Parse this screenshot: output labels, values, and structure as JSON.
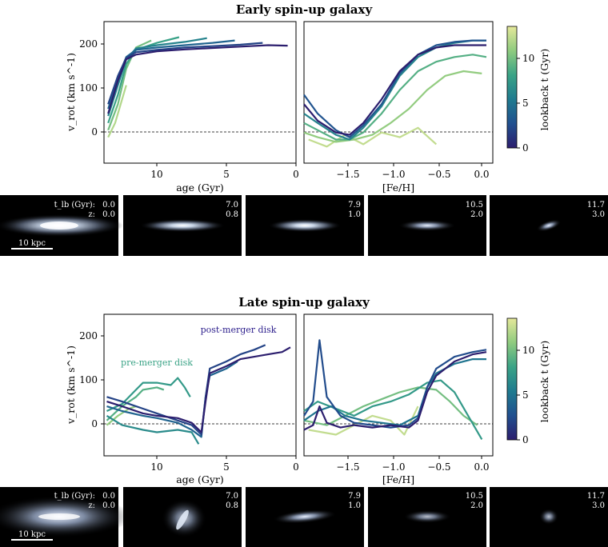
{
  "colormap": [
    "#2c1e6e",
    "#21508f",
    "#1f7b8f",
    "#3aa386",
    "#8fcb7f",
    "#e5e89a"
  ],
  "colorbar": {
    "label": "lookback t (Gyr)",
    "ticks": [
      0,
      5,
      10
    ],
    "range": [
      0,
      13.6
    ]
  },
  "snapshots": [
    {
      "tlb": "0.0",
      "z": "0.0"
    },
    {
      "tlb": "7.0",
      "z": "0.8"
    },
    {
      "tlb": "7.9",
      "z": "1.0"
    },
    {
      "tlb": "10.5",
      "z": "2.0"
    },
    {
      "tlb": "11.7",
      "z": "3.0"
    }
  ],
  "snapshot_labels": {
    "tlb": "t_lb (Gyr):",
    "z": "z:",
    "scale_bar": "10 kpc"
  },
  "chart_data": [
    {
      "type": "line",
      "panel": "early-age",
      "title": "Early spin-up galaxy",
      "xlabel": "age (Gyr)",
      "ylabel": "v_rot (km s^-1)",
      "xlim": [
        13.8,
        0
      ],
      "ylim": [
        -45,
        255
      ],
      "xticks": [
        10,
        5,
        0
      ],
      "yticks": [
        0,
        100,
        200
      ],
      "color_by": "lookback t (Gyr)",
      "series": [
        {
          "t_lookback": 0.0,
          "x": [
            13.5,
            12.8,
            12.2,
            11.5,
            10,
            8,
            6,
            4,
            2,
            0.6
          ],
          "y": [
            60,
            130,
            175,
            185,
            192,
            196,
            199,
            202,
            205,
            204
          ]
        },
        {
          "t_lookback": 2.0,
          "x": [
            13.5,
            12.8,
            12.2,
            11.5,
            10,
            8,
            6,
            4,
            2.4
          ],
          "y": [
            80,
            140,
            178,
            190,
            195,
            200,
            203,
            206,
            210
          ]
        },
        {
          "t_lookback": 4.0,
          "x": [
            13.5,
            12.8,
            12.2,
            11.5,
            10,
            8,
            6,
            4.4
          ],
          "y": [
            70,
            135,
            180,
            195,
            200,
            205,
            210,
            215
          ]
        },
        {
          "t_lookback": 6.0,
          "x": [
            13.5,
            12.8,
            12.2,
            11.5,
            10,
            8,
            6.4
          ],
          "y": [
            55,
            120,
            175,
            198,
            205,
            212,
            220
          ]
        },
        {
          "t_lookback": 8.0,
          "x": [
            13.5,
            12.8,
            12.2,
            11.5,
            10,
            8.4
          ],
          "y": [
            40,
            100,
            165,
            195,
            210,
            222
          ]
        },
        {
          "t_lookback": 10.0,
          "x": [
            13.5,
            12.8,
            12.2,
            11.5,
            10.4
          ],
          "y": [
            25,
            80,
            155,
            200,
            215
          ]
        },
        {
          "t_lookback": 12.0,
          "x": [
            13.5,
            13.0,
            12.5,
            12.2
          ],
          "y": [
            10,
            40,
            90,
            120
          ]
        }
      ],
      "annotations": []
    },
    {
      "type": "line",
      "panel": "early-feh",
      "xlabel": "[Fe/H]",
      "xlim": [
        -1.95,
        0.12
      ],
      "ylim": [
        -45,
        255
      ],
      "xticks": [
        -1.5,
        -1.0,
        -0.5,
        0.0
      ],
      "color_by": "lookback t (Gyr)",
      "series": [
        {
          "t_lookback": 0.0,
          "x": [
            -1.95,
            -1.8,
            -1.6,
            -1.45,
            -1.3,
            -1.1,
            -0.9,
            -0.7,
            -0.5,
            -0.3,
            -0.1,
            0.05
          ],
          "y": [
            80,
            45,
            20,
            15,
            40,
            90,
            150,
            185,
            200,
            205,
            205,
            205
          ]
        },
        {
          "t_lookback": 3.0,
          "x": [
            -1.95,
            -1.8,
            -1.6,
            -1.45,
            -1.3,
            -1.1,
            -0.9,
            -0.7,
            -0.5,
            -0.3,
            -0.1,
            0.05
          ],
          "y": [
            100,
            60,
            25,
            10,
            35,
            80,
            145,
            185,
            205,
            212,
            215,
            215
          ]
        },
        {
          "t_lookback": 6.0,
          "x": [
            -1.95,
            -1.8,
            -1.6,
            -1.45,
            -1.3,
            -1.1,
            -0.9,
            -0.7,
            -0.5,
            -0.3,
            -0.1,
            0.05
          ],
          "y": [
            60,
            40,
            15,
            5,
            30,
            75,
            140,
            180,
            200,
            210,
            215,
            215
          ]
        },
        {
          "t_lookback": 9.0,
          "x": [
            -1.95,
            -1.8,
            -1.6,
            -1.45,
            -1.3,
            -1.1,
            -0.9,
            -0.7,
            -0.5,
            -0.3,
            -0.1,
            0.05
          ],
          "y": [
            40,
            25,
            5,
            5,
            20,
            60,
            110,
            150,
            170,
            180,
            185,
            180
          ]
        },
        {
          "t_lookback": 11.0,
          "x": [
            -1.95,
            -1.8,
            -1.6,
            -1.4,
            -1.2,
            -1.0,
            -0.8,
            -0.6,
            -0.4,
            -0.2,
            0.0
          ],
          "y": [
            20,
            10,
            0,
            5,
            15,
            40,
            70,
            110,
            140,
            150,
            145
          ]
        },
        {
          "t_lookback": 12.5,
          "x": [
            -1.9,
            -1.7,
            -1.5,
            -1.3,
            -1.1,
            -0.9,
            -0.7,
            -0.5
          ],
          "y": [
            5,
            -10,
            15,
            -5,
            20,
            10,
            30,
            -5
          ]
        }
      ],
      "annotations": []
    },
    {
      "type": "line",
      "panel": "late-age",
      "title": "Late spin-up galaxy",
      "xlabel": "age (Gyr)",
      "ylabel": "v_rot (km s^-1)",
      "xlim": [
        13.8,
        0
      ],
      "ylim": [
        -45,
        255
      ],
      "xticks": [
        10,
        5,
        0
      ],
      "yticks": [
        0,
        100,
        200
      ],
      "color_by": "lookback t (Gyr)",
      "series": [
        {
          "t_lookback": 0.0,
          "x": [
            13.6,
            12.5,
            11,
            10,
            8.5,
            7.5,
            6.8,
            6.5,
            6.2,
            5,
            4,
            3,
            2,
            1,
            0.4
          ],
          "y": [
            70,
            60,
            45,
            40,
            35,
            25,
            5,
            70,
            130,
            145,
            160,
            165,
            170,
            175,
            185
          ]
        },
        {
          "t_lookback": 2.0,
          "x": [
            13.6,
            12.5,
            11,
            10,
            8.5,
            7.5,
            6.8,
            6.5,
            6.2,
            5,
            4,
            3,
            2.2
          ],
          "y": [
            80,
            70,
            55,
            45,
            30,
            20,
            0,
            80,
            140,
            155,
            170,
            180,
            190
          ]
        },
        {
          "t_lookback": 4.0,
          "x": [
            13.6,
            12.5,
            11,
            10,
            8.5,
            7.5,
            6.8,
            6.5,
            6.2,
            5,
            4.2
          ],
          "y": [
            60,
            50,
            40,
            35,
            25,
            10,
            -5,
            80,
            125,
            140,
            155
          ]
        },
        {
          "t_lookback": 6.5,
          "x": [
            13.6,
            12.5,
            11,
            10,
            8.5,
            7.5,
            7.0
          ],
          "y": [
            40,
            20,
            10,
            5,
            10,
            5,
            -20
          ]
        },
        {
          "t_lookback": 7.5,
          "x": [
            13.6,
            12.5,
            11.5,
            11,
            10,
            9,
            8.5,
            8.0,
            7.6
          ],
          "y": [
            50,
            65,
            95,
            110,
            110,
            105,
            120,
            100,
            80
          ]
        },
        {
          "t_lookback": 9.0,
          "x": [
            13.6,
            12.5,
            11.5,
            11,
            10,
            9.5
          ],
          "y": [
            30,
            60,
            80,
            95,
            100,
            95
          ]
        },
        {
          "t_lookback": 11.0,
          "x": [
            13.6,
            12.8,
            12,
            11.5
          ],
          "y": [
            20,
            40,
            55,
            60
          ]
        }
      ],
      "annotations": [
        {
          "text": "post-merger disk",
          "x": 3.2,
          "y": 210,
          "color": "#2c1e8c"
        },
        {
          "text": "pre-merger disk",
          "x": 9.3,
          "y": 150,
          "color": "#3aa386"
        }
      ]
    },
    {
      "type": "line",
      "panel": "late-feh",
      "xlabel": "[Fe/H]",
      "xlim": [
        -1.95,
        0.12
      ],
      "ylim": [
        -45,
        255
      ],
      "xticks": [
        -1.5,
        -1.0,
        -0.5,
        0.0
      ],
      "color_by": "lookback t (Gyr)",
      "series": [
        {
          "t_lookback": 0.0,
          "x": [
            -1.95,
            -1.85,
            -1.78,
            -1.7,
            -1.55,
            -1.4,
            -1.2,
            -1.0,
            -0.8,
            -0.7,
            -0.6,
            -0.5,
            -0.3,
            -0.1,
            0.05
          ],
          "y": [
            10,
            20,
            60,
            25,
            15,
            20,
            15,
            20,
            15,
            30,
            90,
            125,
            155,
            170,
            175
          ]
        },
        {
          "t_lookback": 2.5,
          "x": [
            -1.95,
            -1.85,
            -1.78,
            -1.7,
            -1.55,
            -1.4,
            -1.2,
            -1.0,
            -0.8,
            -0.7,
            -0.6,
            -0.5,
            -0.3,
            -0.1,
            0.05
          ],
          "y": [
            40,
            70,
            200,
            80,
            40,
            25,
            20,
            15,
            20,
            35,
            100,
            140,
            165,
            175,
            180
          ]
        },
        {
          "t_lookback": 5.0,
          "x": [
            -1.95,
            -1.8,
            -1.65,
            -1.5,
            -1.3,
            -1.1,
            -0.9,
            -0.7,
            -0.6,
            -0.5,
            -0.3,
            -0.1,
            0.05
          ],
          "y": [
            30,
            50,
            60,
            40,
            30,
            25,
            20,
            40,
            100,
            130,
            150,
            160,
            160
          ]
        },
        {
          "t_lookback": 7.5,
          "x": [
            -1.95,
            -1.8,
            -1.6,
            -1.4,
            -1.2,
            -1.0,
            -0.8,
            -0.6,
            -0.45,
            -0.3,
            -0.15,
            0.0
          ],
          "y": [
            50,
            70,
            55,
            40,
            60,
            70,
            85,
            110,
            115,
            90,
            40,
            -10
          ]
        },
        {
          "t_lookback": 10.0,
          "x": [
            -1.95,
            -1.7,
            -1.5,
            -1.3,
            -1.1,
            -0.9,
            -0.7,
            -0.5,
            -0.35,
            -0.2,
            -0.05
          ],
          "y": [
            30,
            20,
            40,
            60,
            75,
            90,
            100,
            95,
            70,
            40,
            20
          ]
        },
        {
          "t_lookback": 12.5,
          "x": [
            -1.9,
            -1.6,
            -1.4,
            -1.2,
            -1.0,
            -0.85,
            -0.7
          ],
          "y": [
            10,
            0,
            20,
            40,
            30,
            0,
            60
          ]
        }
      ],
      "annotations": []
    }
  ]
}
